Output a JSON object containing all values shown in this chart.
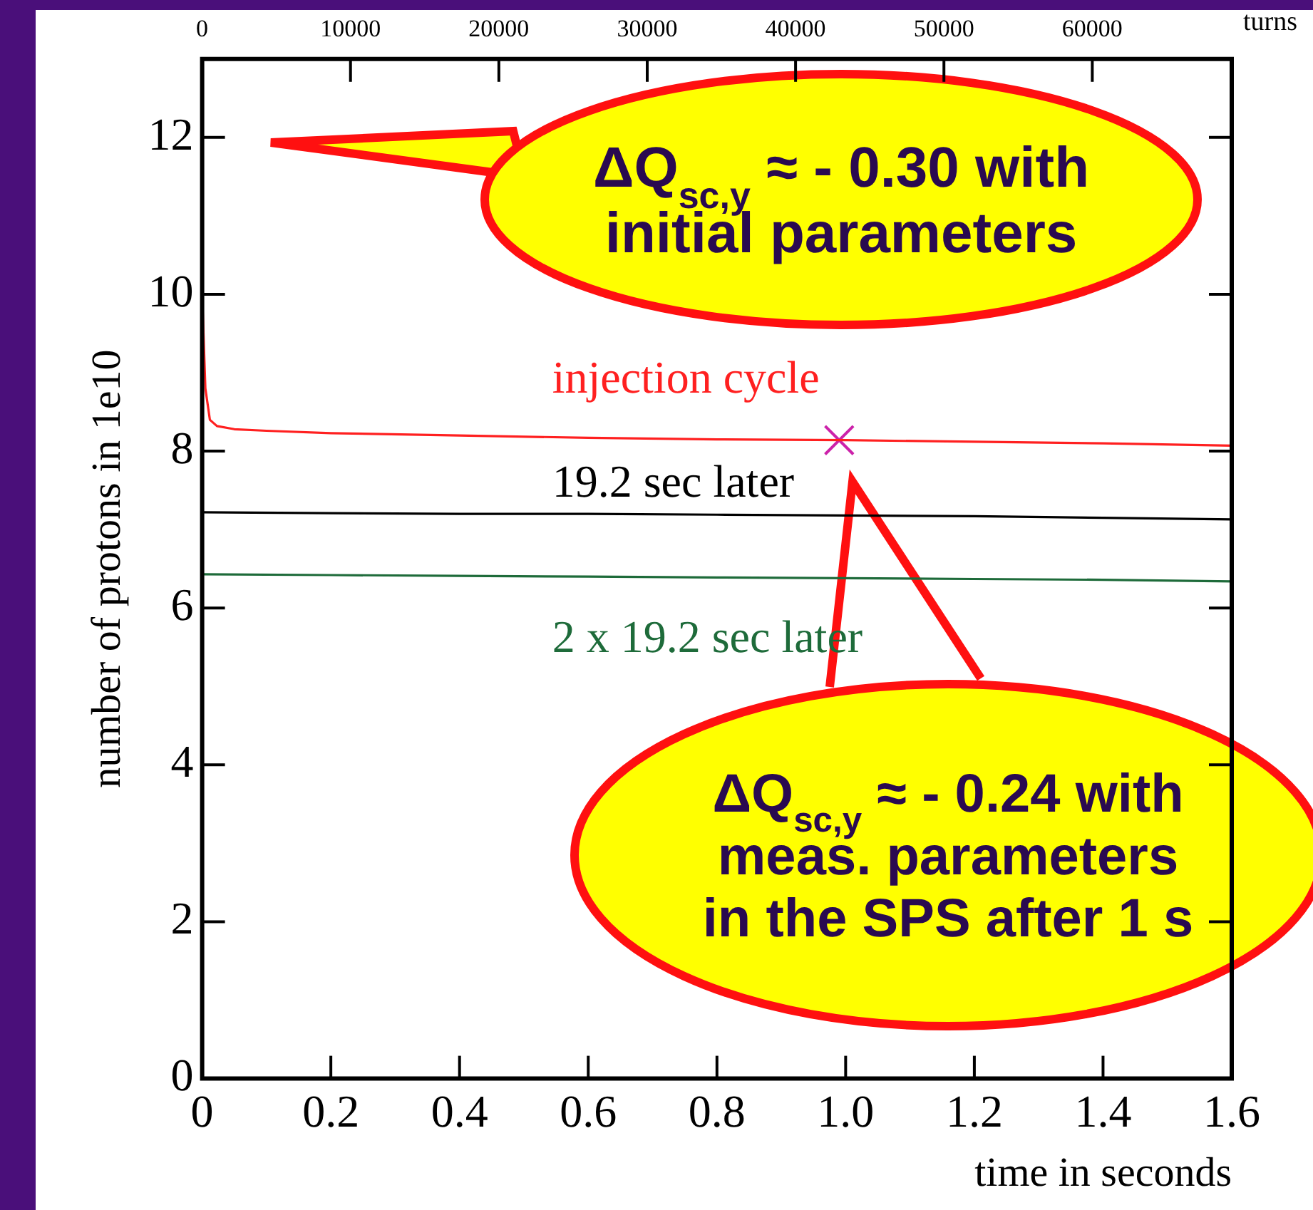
{
  "chart_data": {
    "type": "line",
    "xlabel": "time in seconds",
    "ylabel": "number of protons in 1e10",
    "x2label": "turns",
    "xlim": [
      0,
      1.6
    ],
    "xticks": [
      0,
      0.2,
      0.4,
      0.6,
      0.8,
      {
        "value": 1,
        "label": "1.0"
      },
      1.2,
      1.4,
      1.6
    ],
    "ylim": [
      0,
      13
    ],
    "yticks": [
      0,
      2,
      4,
      6,
      8,
      10,
      12
    ],
    "x2lim": [
      0,
      69400
    ],
    "x2ticks": [
      0,
      10000,
      20000,
      30000,
      40000,
      50000,
      60000
    ],
    "grid": false,
    "legend": false,
    "marker": "none",
    "line_style": "solid",
    "series": [
      {
        "name": "injection cycle",
        "color": "#ff2020",
        "x": [
          0,
          0.005,
          0.012,
          0.023,
          0.05,
          0.1,
          0.2,
          0.4,
          0.6,
          0.8,
          1.0,
          1.2,
          1.4,
          1.6
        ],
        "values": [
          10.0,
          8.8,
          8.4,
          8.32,
          8.28,
          8.26,
          8.23,
          8.2,
          8.17,
          8.15,
          8.14,
          8.12,
          8.1,
          8.07
        ]
      },
      {
        "name": "19.2 sec later",
        "color": "#000000",
        "x": [
          0,
          0.2,
          0.4,
          0.6,
          0.8,
          1.0,
          1.2,
          1.4,
          1.6
        ],
        "values": [
          7.22,
          7.21,
          7.2,
          7.2,
          7.19,
          7.18,
          7.17,
          7.15,
          7.13
        ]
      },
      {
        "name": "2 x 19.2 sec later",
        "color": "#1e6b3a",
        "x": [
          0,
          0.2,
          0.4,
          0.6,
          0.8,
          1.0,
          1.2,
          1.4,
          1.6
        ],
        "values": [
          6.43,
          6.42,
          6.41,
          6.4,
          6.39,
          6.38,
          6.37,
          6.36,
          6.34
        ]
      },
      {
        "type": "scatter",
        "marker": "cross",
        "color": "#cc22aa",
        "x": [
          0.99
        ],
        "values": [
          8.14
        ]
      }
    ],
    "annotations": [
      "ΔQ$_{sc,y}$ ≈ - 0.30 with\ninitial parameters",
      "ΔQ$_{sc,y}$ ≈ - 0.24 with\nmeas. parameters\nin the SPS after 1 s"
    ]
  }
}
